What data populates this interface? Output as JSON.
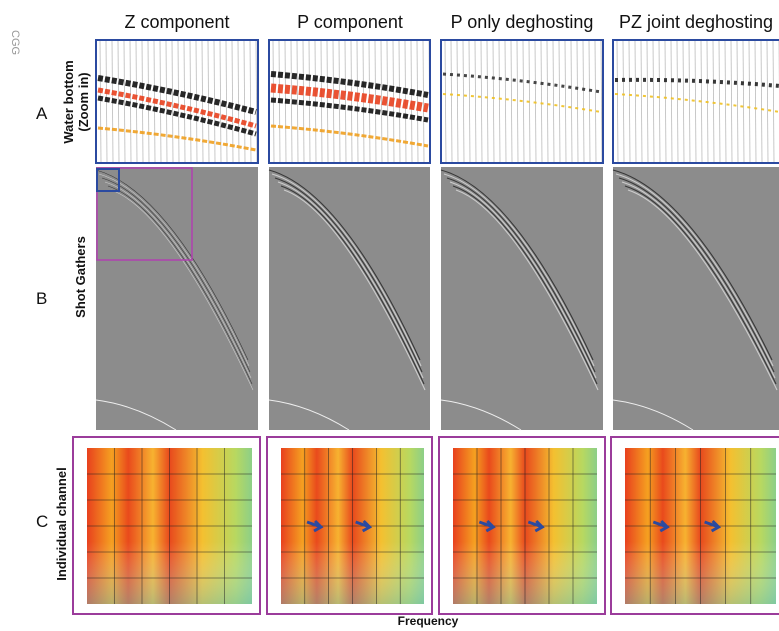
{
  "watermark": "CGG",
  "columns": [
    "Z component",
    "P component",
    "P only deghosting",
    "PZ joint deghosting"
  ],
  "rows": [
    {
      "letter": "A",
      "label": [
        "Water bottom",
        "(Zoom in)"
      ]
    },
    {
      "letter": "B",
      "label": [
        "Shot Gathers"
      ]
    },
    {
      "letter": "C",
      "label": [
        "Individual channel"
      ]
    }
  ],
  "x_axis_label": "Frequency"
}
